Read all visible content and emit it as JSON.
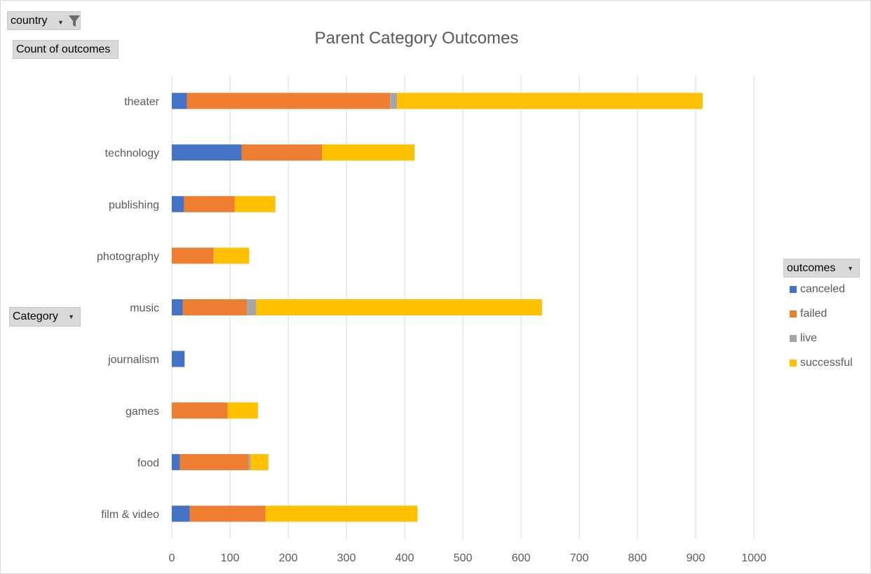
{
  "filters": {
    "country_label": "country",
    "measure_label": "Count of outcomes",
    "category_label": "Category",
    "outcomes_label": "outcomes"
  },
  "icons": {
    "filter": "funnel-icon",
    "dropdown": "chevron-down-icon"
  },
  "chart_data": {
    "type": "bar",
    "orientation": "horizontal",
    "stacked": true,
    "title": "Parent Category Outcomes",
    "categories": [
      "film & video",
      "food",
      "games",
      "journalism",
      "music",
      "photography",
      "publishing",
      "technology",
      "theater"
    ],
    "series": [
      {
        "name": "canceled",
        "color": "#4472c4",
        "values": [
          31,
          14,
          0,
          22,
          19,
          0,
          21,
          120,
          26
        ]
      },
      {
        "name": "failed",
        "color": "#ed7d31",
        "values": [
          130,
          118,
          96,
          0,
          110,
          72,
          87,
          138,
          349
        ]
      },
      {
        "name": "live",
        "color": "#a5a5a5",
        "values": [
          0,
          3,
          0,
          0,
          16,
          0,
          0,
          0,
          12
        ]
      },
      {
        "name": "successful",
        "color": "#ffc000",
        "values": [
          261,
          31,
          52,
          0,
          491,
          61,
          70,
          159,
          525
        ]
      }
    ],
    "x_ticks": [
      0,
      100,
      200,
      300,
      400,
      500,
      600,
      700,
      800,
      900,
      1000
    ],
    "xlim": [
      0,
      1000
    ],
    "grid": true,
    "legend_position": "right"
  }
}
